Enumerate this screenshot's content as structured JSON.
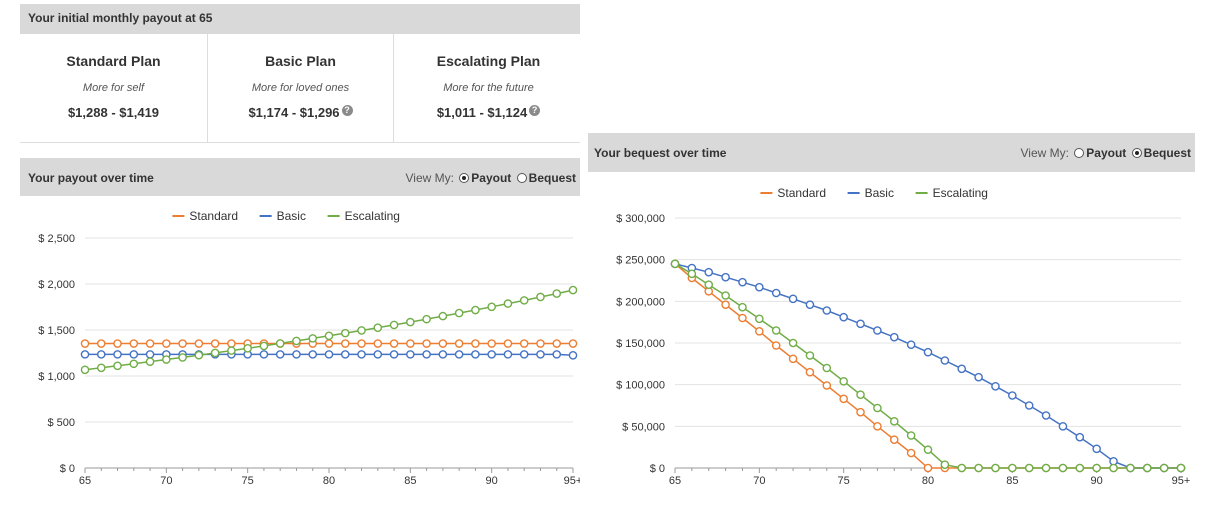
{
  "initial_payout": {
    "title": "Your initial monthly payout at 65",
    "plans": [
      {
        "name": "Standard Plan",
        "tagline": "More for self",
        "range": "$1,288 - $1,419",
        "help": false
      },
      {
        "name": "Basic Plan",
        "tagline": "More for loved ones",
        "range": "$1,174 - $1,296",
        "help": true
      },
      {
        "name": "Escalating Plan",
        "tagline": "More for the future",
        "range": "$1,011 - $1,124",
        "help": true
      }
    ],
    "help_icon": "question-circle-icon"
  },
  "view_toggle": {
    "label": "View My:",
    "payout": "Payout",
    "bequest": "Bequest"
  },
  "payout_chart": {
    "title": "Your payout over time",
    "selected": "payout"
  },
  "bequest_chart": {
    "title": "Your bequest over time",
    "selected": "bequest"
  },
  "colors": {
    "standard": "#ed7d31",
    "basic": "#4472c4",
    "escalating": "#70ad47",
    "header_bg": "#d9d9d9"
  },
  "chart_data": [
    {
      "type": "line",
      "x": [
        65,
        66,
        67,
        68,
        69,
        70,
        71,
        72,
        73,
        74,
        75,
        76,
        77,
        78,
        79,
        80,
        81,
        82,
        83,
        84,
        85,
        86,
        87,
        88,
        89,
        90,
        91,
        92,
        93,
        94,
        95
      ],
      "x_tick_labels": [
        "65",
        "70",
        "75",
        "80",
        "85",
        "90",
        "95+"
      ],
      "x_ticks": [
        65,
        70,
        75,
        80,
        85,
        90,
        95
      ],
      "y_tick_labels": [
        "$ 0",
        "$ 500",
        "$ 1,000",
        "$ 1,500",
        "$ 2,000",
        "$ 2,500"
      ],
      "y_ticks": [
        0,
        500,
        1000,
        1500,
        2000,
        2500
      ],
      "ylim": [
        0,
        2500
      ],
      "xlim": [
        65,
        95
      ],
      "legend": "top-center",
      "grid": true,
      "series": [
        {
          "name": "Standard",
          "color": "#ed7d31",
          "values": [
            1353,
            1353,
            1353,
            1353,
            1353,
            1353,
            1353,
            1353,
            1353,
            1353,
            1353,
            1353,
            1353,
            1353,
            1353,
            1353,
            1353,
            1353,
            1353,
            1353,
            1353,
            1353,
            1353,
            1353,
            1353,
            1353,
            1353,
            1353,
            1353,
            1353,
            1353
          ]
        },
        {
          "name": "Basic",
          "color": "#4472c4",
          "values": [
            1235,
            1235,
            1235,
            1235,
            1235,
            1235,
            1235,
            1235,
            1235,
            1235,
            1235,
            1235,
            1235,
            1235,
            1235,
            1235,
            1235,
            1235,
            1235,
            1235,
            1235,
            1235,
            1235,
            1235,
            1235,
            1235,
            1235,
            1235,
            1235,
            1235,
            1225
          ]
        },
        {
          "name": "Escalating",
          "color": "#70ad47",
          "values": [
            1067,
            1089,
            1111,
            1133,
            1156,
            1179,
            1202,
            1226,
            1251,
            1276,
            1301,
            1327,
            1354,
            1381,
            1409,
            1437,
            1466,
            1495,
            1525,
            1555,
            1586,
            1618,
            1651,
            1684,
            1717,
            1752,
            1787,
            1822,
            1859,
            1896,
            1934
          ]
        }
      ]
    },
    {
      "type": "line",
      "x": [
        65,
        66,
        67,
        68,
        69,
        70,
        71,
        72,
        73,
        74,
        75,
        76,
        77,
        78,
        79,
        80,
        81,
        82,
        83,
        84,
        85,
        86,
        87,
        88,
        89,
        90,
        91,
        92,
        93,
        94,
        95
      ],
      "x_tick_labels": [
        "65",
        "70",
        "75",
        "80",
        "85",
        "90",
        "95+"
      ],
      "x_ticks": [
        65,
        70,
        75,
        80,
        85,
        90,
        95
      ],
      "y_tick_labels": [
        "$ 0",
        "$ 50,000",
        "$ 100,000",
        "$ 150,000",
        "$ 200,000",
        "$ 250,000",
        "$ 300,000"
      ],
      "y_ticks": [
        0,
        50000,
        100000,
        150000,
        200000,
        250000,
        300000
      ],
      "ylim": [
        0,
        300000
      ],
      "xlim": [
        65,
        95
      ],
      "legend": "top-center",
      "grid": true,
      "series": [
        {
          "name": "Standard",
          "color": "#ed7d31",
          "values": [
            245000,
            228000,
            212000,
            196000,
            180000,
            164000,
            147000,
            131000,
            115000,
            99000,
            83000,
            67000,
            50000,
            34000,
            18000,
            0,
            0,
            0,
            0,
            0,
            0,
            0,
            0,
            0,
            0,
            0,
            0,
            0,
            0,
            0,
            0
          ]
        },
        {
          "name": "Basic",
          "color": "#4472c4",
          "values": [
            245000,
            240000,
            235000,
            229000,
            223000,
            217000,
            210000,
            203000,
            196000,
            189000,
            181000,
            173000,
            165000,
            157000,
            148000,
            139000,
            129000,
            119000,
            109000,
            98000,
            87000,
            75000,
            63000,
            50000,
            37000,
            23000,
            8000,
            0,
            0,
            0,
            0
          ]
        },
        {
          "name": "Escalating",
          "color": "#70ad47",
          "values": [
            245000,
            233000,
            220000,
            207000,
            193000,
            179000,
            165000,
            150000,
            135000,
            120000,
            104000,
            88000,
            72000,
            56000,
            39000,
            22000,
            4000,
            0,
            0,
            0,
            0,
            0,
            0,
            0,
            0,
            0,
            0,
            0,
            0,
            0,
            0
          ]
        }
      ]
    }
  ]
}
